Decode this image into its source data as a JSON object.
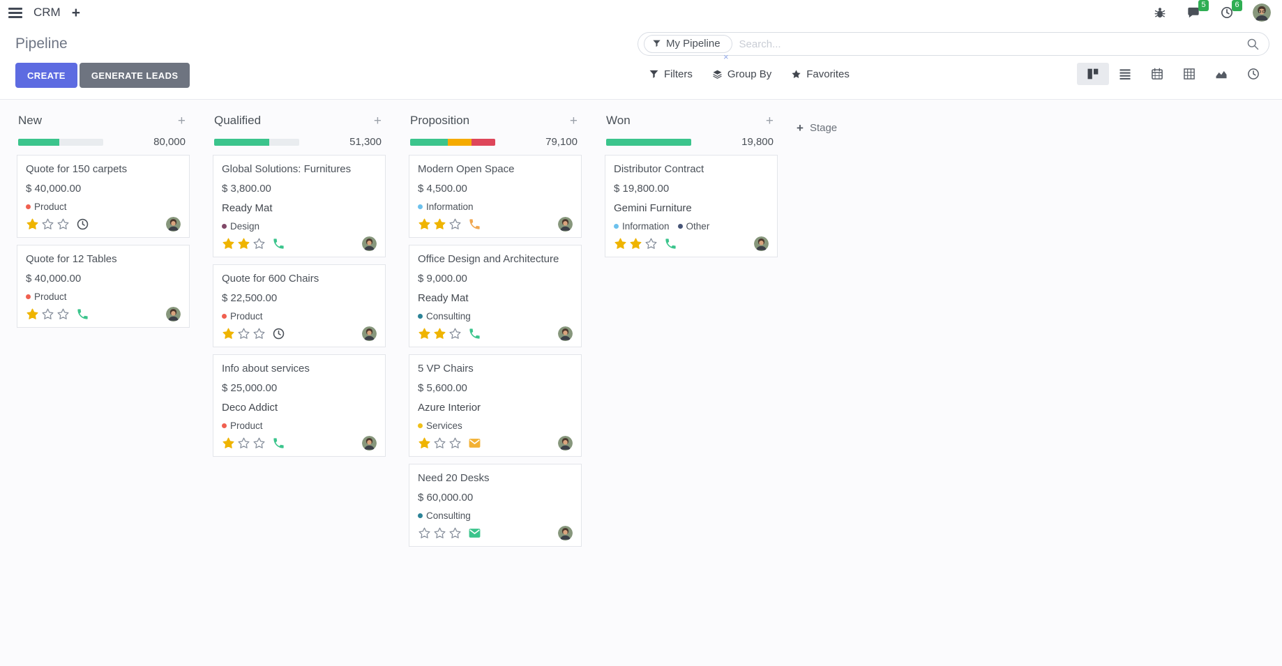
{
  "app": {
    "name": "CRM"
  },
  "topbar": {
    "messages_badge": "5",
    "activities_badge": "6"
  },
  "breadcrumb": {
    "title": "Pipeline"
  },
  "buttons": {
    "create": "CREATE",
    "generate_leads": "GENERATE LEADS"
  },
  "search": {
    "facet": "My Pipeline",
    "placeholder": "Search...",
    "remove_facet": "×"
  },
  "controls": {
    "filters": "Filters",
    "group_by": "Group By",
    "favorites": "Favorites"
  },
  "view_switcher": [
    {
      "name": "kanban",
      "active": true
    },
    {
      "name": "list",
      "active": false
    },
    {
      "name": "calendar",
      "active": false
    },
    {
      "name": "pivot",
      "active": false
    },
    {
      "name": "graph",
      "active": false
    },
    {
      "name": "activity",
      "active": false
    }
  ],
  "add_stage": {
    "label": "Stage"
  },
  "colors": {
    "green": "#3bc48c",
    "orange": "#f5ab00",
    "red": "#de465a",
    "star_gold": "#efb400",
    "badge_green": "#2fae53",
    "create_btn": "#5d6be1",
    "generate_btn": "#6e7480",
    "bar_bg": "#e9ecef"
  },
  "columns": [
    {
      "name": "New",
      "total": "80,000",
      "progress": [
        {
          "color": "#3bc48c",
          "pct": 48
        }
      ],
      "cards": [
        {
          "title": "Quote for 150 carpets",
          "amount": "$ 40,000.00",
          "partner": null,
          "tags": [
            {
              "label": "Product",
              "color": "#f06050"
            }
          ],
          "stars": 1,
          "activity": {
            "type": "clock",
            "color": "#4b5159"
          }
        },
        {
          "title": "Quote for 12 Tables",
          "amount": "$ 40,000.00",
          "partner": null,
          "tags": [
            {
              "label": "Product",
              "color": "#f06050"
            }
          ],
          "stars": 1,
          "activity": {
            "type": "phone",
            "color": "#3bc48c"
          }
        }
      ]
    },
    {
      "name": "Qualified",
      "total": "51,300",
      "progress": [
        {
          "color": "#3bc48c",
          "pct": 65
        }
      ],
      "cards": [
        {
          "title": "Global Solutions: Furnitures",
          "amount": "$ 3,800.00",
          "partner": "Ready Mat",
          "tags": [
            {
              "label": "Design",
              "color": "#814968"
            }
          ],
          "stars": 2,
          "activity": {
            "type": "phone",
            "color": "#3bc48c"
          }
        },
        {
          "title": "Quote for 600 Chairs",
          "amount": "$ 22,500.00",
          "partner": null,
          "tags": [
            {
              "label": "Product",
              "color": "#f06050"
            }
          ],
          "stars": 1,
          "activity": {
            "type": "clock",
            "color": "#4b5159"
          }
        },
        {
          "title": "Info about services",
          "amount": "$ 25,000.00",
          "partner": "Deco Addict",
          "tags": [
            {
              "label": "Product",
              "color": "#f06050"
            }
          ],
          "stars": 1,
          "activity": {
            "type": "phone",
            "color": "#3bc48c"
          }
        }
      ]
    },
    {
      "name": "Proposition",
      "total": "79,100",
      "progress": [
        {
          "color": "#3bc48c",
          "pct": 44
        },
        {
          "color": "#f5ab00",
          "pct": 28
        },
        {
          "color": "#de465a",
          "pct": 28
        }
      ],
      "cards": [
        {
          "title": "Modern Open Space",
          "amount": "$ 4,500.00",
          "partner": null,
          "tags": [
            {
              "label": "Information",
              "color": "#6cc1ed"
            }
          ],
          "stars": 2,
          "activity": {
            "type": "phone",
            "color": "#f0a64f"
          }
        },
        {
          "title": "Office Design and Architecture",
          "amount": "$ 9,000.00",
          "partner": "Ready Mat",
          "tags": [
            {
              "label": "Consulting",
              "color": "#2c8397"
            }
          ],
          "stars": 2,
          "activity": {
            "type": "phone",
            "color": "#3bc48c"
          }
        },
        {
          "title": "5 VP Chairs",
          "amount": "$ 5,600.00",
          "partner": "Azure Interior",
          "tags": [
            {
              "label": "Services",
              "color": "#f0c019"
            }
          ],
          "stars": 1,
          "activity": {
            "type": "envelope",
            "color": "#f2b134"
          }
        },
        {
          "title": "Need 20 Desks",
          "amount": "$ 60,000.00",
          "partner": null,
          "tags": [
            {
              "label": "Consulting",
              "color": "#2c8397"
            }
          ],
          "stars": 0,
          "activity": {
            "type": "envelope",
            "color": "#3bc48c"
          }
        }
      ]
    },
    {
      "name": "Won",
      "total": "19,800",
      "progress": [
        {
          "color": "#3bc48c",
          "pct": 100
        }
      ],
      "cards": [
        {
          "title": "Distributor Contract",
          "amount": "$ 19,800.00",
          "partner": "Gemini Furniture",
          "tags": [
            {
              "label": "Information",
              "color": "#6cc1ed"
            },
            {
              "label": "Other",
              "color": "#475577"
            }
          ],
          "stars": 2,
          "activity": {
            "type": "phone",
            "color": "#3bc48c"
          }
        }
      ]
    }
  ]
}
